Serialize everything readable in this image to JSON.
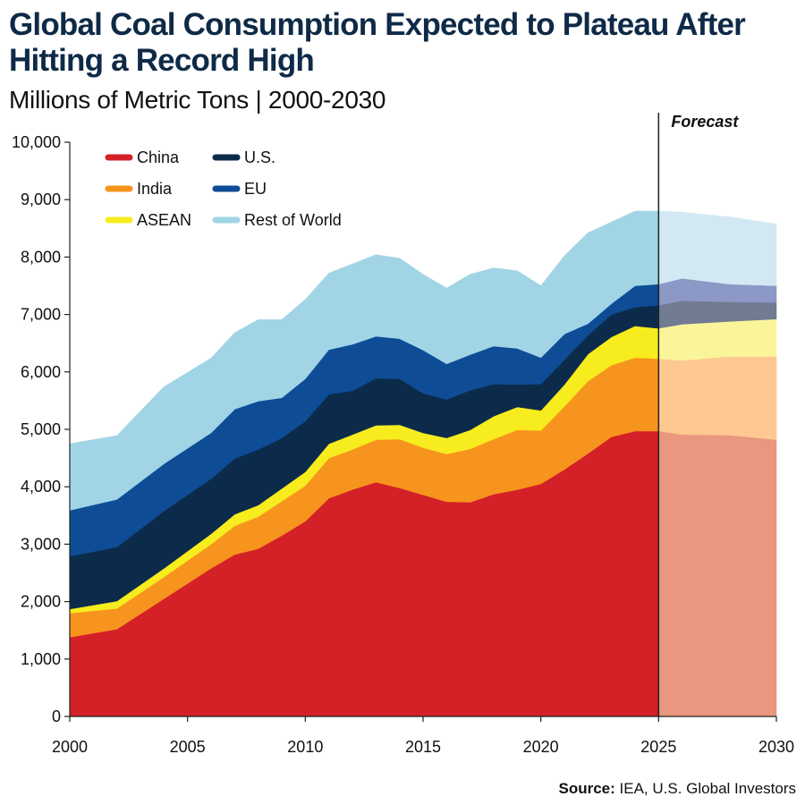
{
  "header": {
    "title": "Global Coal Consumption Expected to Plateau After Hitting a Record High",
    "subtitle": "Millions of Metric Tons | 2000-2030"
  },
  "source": {
    "label": "Source:",
    "text": "IEA, U.S. Global Investors"
  },
  "chart_data": {
    "type": "area",
    "stacked": true,
    "x": [
      2000,
      2002,
      2004,
      2006,
      2007,
      2008,
      2009,
      2010,
      2011,
      2012,
      2013,
      2014,
      2015,
      2016,
      2017,
      2018,
      2019,
      2020,
      2021,
      2022,
      2023,
      2024,
      2025,
      2026,
      2028,
      2030
    ],
    "series": [
      {
        "name": "China",
        "color": "#d42027",
        "forecast_color": "#ea977f",
        "values": [
          1380,
          1520,
          2050,
          2580,
          2820,
          2920,
          3150,
          3400,
          3800,
          3950,
          4080,
          3980,
          3860,
          3740,
          3730,
          3870,
          3950,
          4050,
          4300,
          4580,
          4870,
          4970,
          4970,
          4910,
          4900,
          4820
        ]
      },
      {
        "name": "India",
        "color": "#f7941d",
        "forecast_color": "#fdc891",
        "values": [
          420,
          360,
          380,
          420,
          500,
          560,
          600,
          620,
          700,
          700,
          740,
          850,
          820,
          830,
          930,
          960,
          1040,
          930,
          1100,
          1260,
          1250,
          1280,
          1260,
          1290,
          1370,
          1450
        ]
      },
      {
        "name": "ASEAN",
        "color": "#f7ec1e",
        "forecast_color": "#faf59a",
        "values": [
          70,
          130,
          150,
          180,
          200,
          200,
          220,
          240,
          250,
          260,
          250,
          250,
          260,
          280,
          330,
          400,
          400,
          350,
          380,
          470,
          490,
          550,
          530,
          630,
          610,
          650
        ]
      },
      {
        "name": "U.S.",
        "color": "#0c2b4b",
        "forecast_color": "#717b92",
        "values": [
          920,
          940,
          1000,
          960,
          970,
          970,
          880,
          880,
          860,
          760,
          820,
          800,
          690,
          670,
          690,
          560,
          390,
          460,
          430,
          330,
          390,
          330,
          400,
          410,
          340,
          290
        ]
      },
      {
        "name": "EU",
        "color": "#0e4d96",
        "forecast_color": "#8c98c5",
        "values": [
          800,
          830,
          820,
          800,
          860,
          840,
          700,
          740,
          780,
          810,
          730,
          700,
          750,
          620,
          620,
          660,
          630,
          460,
          450,
          200,
          190,
          370,
          370,
          390,
          310,
          290
        ]
      },
      {
        "name": "Rest of World",
        "color": "#a1d5e6",
        "forecast_color": "#d2e9f3",
        "values": [
          1160,
          1110,
          1340,
          1300,
          1330,
          1420,
          1360,
          1380,
          1330,
          1400,
          1420,
          1400,
          1320,
          1320,
          1400,
          1360,
          1350,
          1250,
          1360,
          1580,
          1420,
          1300,
          1270,
          1150,
          1170,
          1080
        ]
      }
    ],
    "forecast_start": 2025,
    "forecast_label": "Forecast",
    "xlim": [
      2000,
      2030
    ],
    "ylim": [
      0,
      10000
    ],
    "xticks": [
      2000,
      2005,
      2010,
      2015,
      2020,
      2025,
      2030
    ],
    "yticks": [
      0,
      1000,
      2000,
      3000,
      4000,
      5000,
      6000,
      7000,
      8000,
      9000,
      10000
    ],
    "ytick_labels": [
      "0",
      "1,000",
      "2,000",
      "3,000",
      "4,000",
      "5,000",
      "6,000",
      "7,000",
      "8,000",
      "9,000",
      "10,000"
    ],
    "legend": [
      {
        "name": "China",
        "color": "#d42027"
      },
      {
        "name": "India",
        "color": "#f7941d"
      },
      {
        "name": "ASEAN",
        "color": "#f7ec1e"
      },
      {
        "name": "U.S.",
        "color": "#0c2b4b"
      },
      {
        "name": "EU",
        "color": "#0e4d96"
      },
      {
        "name": "Rest of World",
        "color": "#a1d5e6"
      }
    ],
    "legend_position": "top-left",
    "grid": false
  }
}
